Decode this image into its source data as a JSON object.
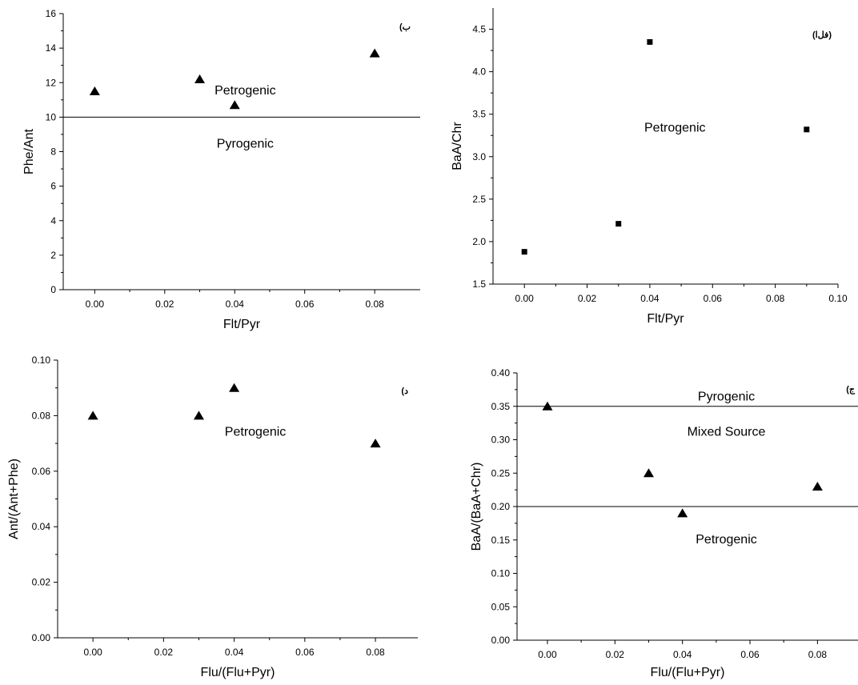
{
  "chart_data": [
    {
      "id": "tl",
      "type": "scatter",
      "panel_label": "(ب",
      "xlabel": "Flt/Pyr",
      "ylabel": "Phe/Ant",
      "xlim": [
        -0.009,
        0.093
      ],
      "ylim": [
        0,
        16
      ],
      "xticks": [
        0.0,
        0.02,
        0.04,
        0.06,
        0.08
      ],
      "xtick_labels": [
        "0.00",
        "0.02",
        "0.04",
        "0.06",
        "0.08"
      ],
      "yticks": [
        0,
        2,
        4,
        6,
        8,
        10,
        12,
        14,
        16
      ],
      "ytick_labels": [
        "0",
        "2",
        "4",
        "6",
        "8",
        "10",
        "12",
        "14",
        "16"
      ],
      "marker": "triangle",
      "points": [
        {
          "x": 0.0,
          "y": 11.5
        },
        {
          "x": 0.03,
          "y": 12.2
        },
        {
          "x": 0.04,
          "y": 10.7
        },
        {
          "x": 0.08,
          "y": 13.7
        }
      ],
      "hlines": [
        10
      ],
      "annotations": [
        {
          "text": "Petrogenic",
          "x": 0.043,
          "y": 11.6
        },
        {
          "text": "Pyrogenic",
          "x": 0.043,
          "y": 8.5
        }
      ]
    },
    {
      "id": "tr",
      "type": "scatter",
      "panel_label": "(فل‌ا)",
      "xlabel": "Flt/Pyr",
      "ylabel": "BaA/Chr",
      "xlim": [
        -0.01,
        0.1
      ],
      "ylim": [
        1.5,
        4.75
      ],
      "xticks": [
        0.0,
        0.02,
        0.04,
        0.06,
        0.08,
        0.1
      ],
      "xtick_labels": [
        "0.00",
        "0.02",
        "0.04",
        "0.06",
        "0.08",
        "0.10"
      ],
      "yticks": [
        1.5,
        2.0,
        2.5,
        3.0,
        3.5,
        4.0,
        4.5
      ],
      "ytick_labels": [
        "1.5",
        "2.0",
        "2.5",
        "3.0",
        "3.5",
        "4.0",
        "4.5"
      ],
      "marker": "square",
      "points": [
        {
          "x": 0.0,
          "y": 1.88
        },
        {
          "x": 0.03,
          "y": 2.21
        },
        {
          "x": 0.04,
          "y": 4.35
        },
        {
          "x": 0.09,
          "y": 3.32
        }
      ],
      "hlines": [],
      "annotations": [
        {
          "text": "Petrogenic",
          "x": 0.048,
          "y": 3.35
        }
      ]
    },
    {
      "id": "bl",
      "type": "scatter",
      "panel_label": "(د",
      "xlabel": "Flu/(Flu+Pyr)",
      "ylabel": "Ant/(Ant+Phe)",
      "xlim": [
        -0.01,
        0.092
      ],
      "ylim": [
        0,
        0.1
      ],
      "xticks": [
        0.0,
        0.02,
        0.04,
        0.06,
        0.08
      ],
      "xtick_labels": [
        "0.00",
        "0.02",
        "0.04",
        "0.06",
        "0.08"
      ],
      "yticks": [
        0.0,
        0.02,
        0.04,
        0.06,
        0.08,
        0.1
      ],
      "ytick_labels": [
        "0.00",
        "0.02",
        "0.04",
        "0.06",
        "0.08",
        "0.10"
      ],
      "marker": "triangle",
      "points": [
        {
          "x": 0.0,
          "y": 0.08
        },
        {
          "x": 0.03,
          "y": 0.08
        },
        {
          "x": 0.04,
          "y": 0.09
        },
        {
          "x": 0.08,
          "y": 0.07
        }
      ],
      "hlines": [],
      "annotations": [
        {
          "text": "Petrogenic",
          "x": 0.046,
          "y": 0.0745
        }
      ]
    },
    {
      "id": "br",
      "type": "scatter",
      "panel_label": "(ج",
      "xlabel": "Flu/(Flu+Pyr)",
      "ylabel": "BaA/(BaA+Chr)",
      "xlim": [
        -0.009,
        0.092
      ],
      "ylim": [
        0,
        0.4
      ],
      "xticks": [
        0.0,
        0.02,
        0.04,
        0.06,
        0.08
      ],
      "xtick_labels": [
        "0.00",
        "0.02",
        "0.04",
        "0.06",
        "0.08"
      ],
      "yticks": [
        0.0,
        0.05,
        0.1,
        0.15,
        0.2,
        0.25,
        0.3,
        0.35,
        0.4
      ],
      "ytick_labels": [
        "0.00",
        "0.05",
        "0.10",
        "0.15",
        "0.20",
        "0.25",
        "0.30",
        "0.35",
        "0.40"
      ],
      "marker": "triangle",
      "points": [
        {
          "x": 0.0,
          "y": 0.35
        },
        {
          "x": 0.03,
          "y": 0.25
        },
        {
          "x": 0.04,
          "y": 0.19
        },
        {
          "x": 0.08,
          "y": 0.23
        }
      ],
      "hlines": [
        0.35,
        0.2
      ],
      "annotations": [
        {
          "text": "Pyrogenic",
          "x": 0.053,
          "y": 0.366
        },
        {
          "text": "Mixed Source",
          "x": 0.053,
          "y": 0.313
        },
        {
          "text": "Petrogenic",
          "x": 0.053,
          "y": 0.152
        }
      ]
    }
  ]
}
